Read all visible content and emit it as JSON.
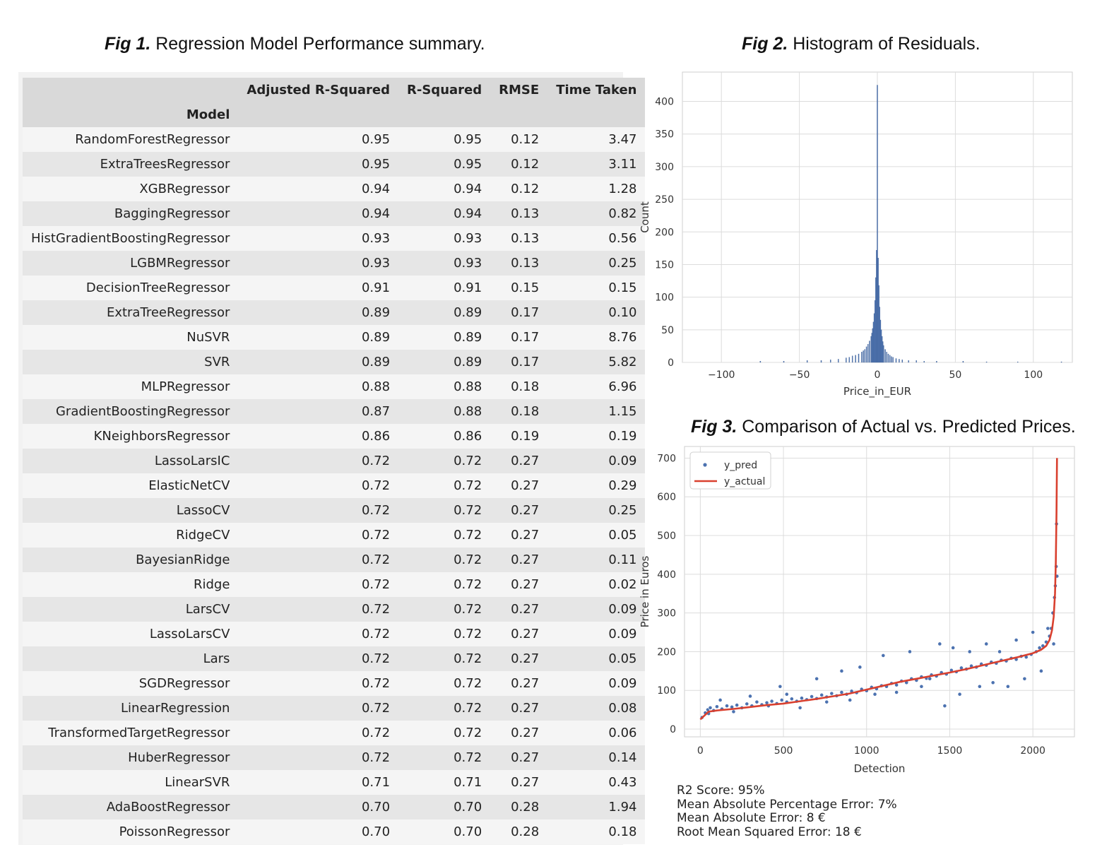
{
  "fig1": {
    "label": "Fig 1.",
    "caption": "Regression Model Performance summary."
  },
  "fig2": {
    "label": "Fig 2.",
    "caption": "Histogram of Residuals."
  },
  "fig3": {
    "label": "Fig 3.",
    "caption": "Comparison of Actual vs. Predicted Prices."
  },
  "metrics": {
    "r2": "R2 Score: 95%",
    "mape": "Mean Absolute Percentage Error: 7%",
    "mae": "Mean Absolute Error: 8 €",
    "rmse": "Root Mean Squared Error: 18 €"
  },
  "chart_data": [
    {
      "type": "table",
      "index_name": "Model",
      "columns": [
        "Adjusted R-Squared",
        "R-Squared",
        "RMSE",
        "Time Taken"
      ],
      "rows": [
        [
          "RandomForestRegressor",
          "0.95",
          "0.95",
          "0.12",
          "3.47"
        ],
        [
          "ExtraTreesRegressor",
          "0.95",
          "0.95",
          "0.12",
          "3.11"
        ],
        [
          "XGBRegressor",
          "0.94",
          "0.94",
          "0.12",
          "1.28"
        ],
        [
          "BaggingRegressor",
          "0.94",
          "0.94",
          "0.13",
          "0.82"
        ],
        [
          "HistGradientBoostingRegressor",
          "0.93",
          "0.93",
          "0.13",
          "0.56"
        ],
        [
          "LGBMRegressor",
          "0.93",
          "0.93",
          "0.13",
          "0.25"
        ],
        [
          "DecisionTreeRegressor",
          "0.91",
          "0.91",
          "0.15",
          "0.15"
        ],
        [
          "ExtraTreeRegressor",
          "0.89",
          "0.89",
          "0.17",
          "0.10"
        ],
        [
          "NuSVR",
          "0.89",
          "0.89",
          "0.17",
          "8.76"
        ],
        [
          "SVR",
          "0.89",
          "0.89",
          "0.17",
          "5.82"
        ],
        [
          "MLPRegressor",
          "0.88",
          "0.88",
          "0.18",
          "6.96"
        ],
        [
          "GradientBoostingRegressor",
          "0.87",
          "0.88",
          "0.18",
          "1.15"
        ],
        [
          "KNeighborsRegressor",
          "0.86",
          "0.86",
          "0.19",
          "0.19"
        ],
        [
          "LassoLarsIC",
          "0.72",
          "0.72",
          "0.27",
          "0.09"
        ],
        [
          "ElasticNetCV",
          "0.72",
          "0.72",
          "0.27",
          "0.29"
        ],
        [
          "LassoCV",
          "0.72",
          "0.72",
          "0.27",
          "0.25"
        ],
        [
          "RidgeCV",
          "0.72",
          "0.72",
          "0.27",
          "0.05"
        ],
        [
          "BayesianRidge",
          "0.72",
          "0.72",
          "0.27",
          "0.11"
        ],
        [
          "Ridge",
          "0.72",
          "0.72",
          "0.27",
          "0.02"
        ],
        [
          "LarsCV",
          "0.72",
          "0.72",
          "0.27",
          "0.09"
        ],
        [
          "LassoLarsCV",
          "0.72",
          "0.72",
          "0.27",
          "0.09"
        ],
        [
          "Lars",
          "0.72",
          "0.72",
          "0.27",
          "0.05"
        ],
        [
          "SGDRegressor",
          "0.72",
          "0.72",
          "0.27",
          "0.09"
        ],
        [
          "LinearRegression",
          "0.72",
          "0.72",
          "0.27",
          "0.08"
        ],
        [
          "TransformedTargetRegressor",
          "0.72",
          "0.72",
          "0.27",
          "0.06"
        ],
        [
          "HuberRegressor",
          "0.72",
          "0.72",
          "0.27",
          "0.14"
        ],
        [
          "LinearSVR",
          "0.71",
          "0.71",
          "0.27",
          "0.43"
        ],
        [
          "AdaBoostRegressor",
          "0.70",
          "0.70",
          "0.28",
          "1.94"
        ],
        [
          "PoissonRegressor",
          "0.70",
          "0.70",
          "0.28",
          "0.18"
        ]
      ]
    },
    {
      "type": "bar",
      "xlabel": "Price_in_EUR",
      "ylabel": "Count",
      "xlim": [
        -125,
        125
      ],
      "ylim": [
        0,
        445
      ],
      "xticks": [
        "−100",
        "−50",
        "0",
        "50",
        "100"
      ],
      "xtick_values": [
        -100,
        -50,
        0,
        50,
        100
      ],
      "yticks": [
        0,
        50,
        100,
        150,
        200,
        250,
        300,
        350,
        400
      ],
      "grid": true,
      "color": "#4c72b0",
      "bin_width": 0.5,
      "bins": [
        {
          "x": -75,
          "count": 2
        },
        {
          "x": -60,
          "count": 2
        },
        {
          "x": -45,
          "count": 3
        },
        {
          "x": -36,
          "count": 3
        },
        {
          "x": -30,
          "count": 4
        },
        {
          "x": -25,
          "count": 5
        },
        {
          "x": -20,
          "count": 7
        },
        {
          "x": -18,
          "count": 8
        },
        {
          "x": -16,
          "count": 10
        },
        {
          "x": -14,
          "count": 11
        },
        {
          "x": -12,
          "count": 13
        },
        {
          "x": -10,
          "count": 16
        },
        {
          "x": -9,
          "count": 18
        },
        {
          "x": -8,
          "count": 20
        },
        {
          "x": -7,
          "count": 24
        },
        {
          "x": -6,
          "count": 28
        },
        {
          "x": -5,
          "count": 33
        },
        {
          "x": -4,
          "count": 40
        },
        {
          "x": -3.5,
          "count": 45
        },
        {
          "x": -3,
          "count": 52
        },
        {
          "x": -2.5,
          "count": 62
        },
        {
          "x": -2,
          "count": 75
        },
        {
          "x": -1.5,
          "count": 95
        },
        {
          "x": -1,
          "count": 130
        },
        {
          "x": -0.5,
          "count": 172
        },
        {
          "x": 0,
          "count": 425
        },
        {
          "x": 0.5,
          "count": 160
        },
        {
          "x": 1,
          "count": 118
        },
        {
          "x": 1.5,
          "count": 85
        },
        {
          "x": 2,
          "count": 65
        },
        {
          "x": 2.5,
          "count": 50
        },
        {
          "x": 3,
          "count": 40
        },
        {
          "x": 3.5,
          "count": 32
        },
        {
          "x": 4,
          "count": 26
        },
        {
          "x": 5,
          "count": 20
        },
        {
          "x": 6,
          "count": 16
        },
        {
          "x": 7,
          "count": 13
        },
        {
          "x": 8,
          "count": 11
        },
        {
          "x": 9,
          "count": 9
        },
        {
          "x": 10,
          "count": 8
        },
        {
          "x": 12,
          "count": 6
        },
        {
          "x": 14,
          "count": 5
        },
        {
          "x": 16,
          "count": 4
        },
        {
          "x": 20,
          "count": 3
        },
        {
          "x": 25,
          "count": 3
        },
        {
          "x": 30,
          "count": 2
        },
        {
          "x": 38,
          "count": 2
        },
        {
          "x": 55,
          "count": 2
        },
        {
          "x": 70,
          "count": 1
        },
        {
          "x": 90,
          "count": 1
        },
        {
          "x": 118,
          "count": 1
        }
      ]
    },
    {
      "type": "scatter",
      "xlabel": "Detection",
      "ylabel": "Price in Euros",
      "xlim": [
        -95,
        2250
      ],
      "ylim": [
        -20,
        730
      ],
      "xticks": [
        0,
        500,
        1000,
        1500,
        2000
      ],
      "yticks": [
        0,
        100,
        200,
        300,
        400,
        500,
        600,
        700
      ],
      "grid": true,
      "legend": "top-left",
      "series": [
        {
          "name": "y_pred",
          "kind": "points",
          "color": "#4c72b0",
          "x": [
            10,
            30,
            45,
            60,
            80,
            100,
            130,
            160,
            190,
            220,
            250,
            280,
            310,
            340,
            370,
            400,
            430,
            460,
            490,
            520,
            550,
            580,
            610,
            640,
            670,
            700,
            730,
            760,
            790,
            820,
            850,
            880,
            910,
            940,
            970,
            1000,
            1030,
            1060,
            1090,
            1120,
            1150,
            1180,
            1210,
            1240,
            1270,
            1300,
            1330,
            1360,
            1390,
            1420,
            1450,
            1480,
            1510,
            1540,
            1570,
            1600,
            1630,
            1660,
            1690,
            1720,
            1750,
            1780,
            1810,
            1840,
            1870,
            1900,
            1930,
            1960,
            1990,
            2020,
            2040,
            2060,
            2080,
            2100,
            2110,
            2120,
            2130,
            2135,
            2140,
            2142,
            2145,
            50,
            120,
            200,
            300,
            410,
            480,
            520,
            600,
            700,
            760,
            850,
            900,
            960,
            1050,
            1100,
            1180,
            1260,
            1330,
            1380,
            1440,
            1470,
            1520,
            1560,
            1620,
            1680,
            1720,
            1760,
            1800,
            1850,
            1900,
            1950,
            2000,
            2050,
            2090,
            2125
          ],
          "y": [
            30,
            42,
            50,
            55,
            48,
            58,
            52,
            60,
            57,
            62,
            55,
            65,
            60,
            70,
            63,
            68,
            72,
            66,
            75,
            70,
            78,
            72,
            80,
            76,
            84,
            79,
            88,
            83,
            92,
            86,
            95,
            90,
            98,
            94,
            103,
            99,
            108,
            104,
            112,
            110,
            118,
            114,
            124,
            120,
            130,
            126,
            135,
            131,
            140,
            137,
            146,
            142,
            152,
            148,
            158,
            155,
            163,
            160,
            168,
            165,
            173,
            170,
            178,
            176,
            183,
            180,
            188,
            186,
            193,
            200,
            210,
            215,
            225,
            240,
            260,
            300,
            340,
            370,
            420,
            530,
            395,
            40,
            75,
            45,
            85,
            60,
            110,
            90,
            55,
            130,
            70,
            150,
            75,
            160,
            90,
            190,
            95,
            200,
            110,
            130,
            220,
            60,
            210,
            90,
            200,
            110,
            220,
            120,
            200,
            110,
            230,
            130,
            250,
            150,
            260,
            220
          ]
        },
        {
          "name": "y_actual",
          "kind": "line",
          "color": "#d9402f",
          "x": [
            0,
            50,
            100,
            200,
            300,
            400,
            500,
            600,
            700,
            800,
            900,
            1000,
            1100,
            1200,
            1300,
            1400,
            1500,
            1600,
            1700,
            1800,
            1900,
            2000,
            2050,
            2080,
            2100,
            2115,
            2125,
            2133,
            2138,
            2142,
            2145
          ],
          "y": [
            25,
            45,
            48,
            52,
            57,
            62,
            66,
            72,
            78,
            85,
            92,
            102,
            112,
            122,
            130,
            138,
            146,
            155,
            165,
            175,
            185,
            196,
            205,
            215,
            230,
            255,
            290,
            350,
            430,
            560,
            700
          ]
        }
      ]
    }
  ]
}
